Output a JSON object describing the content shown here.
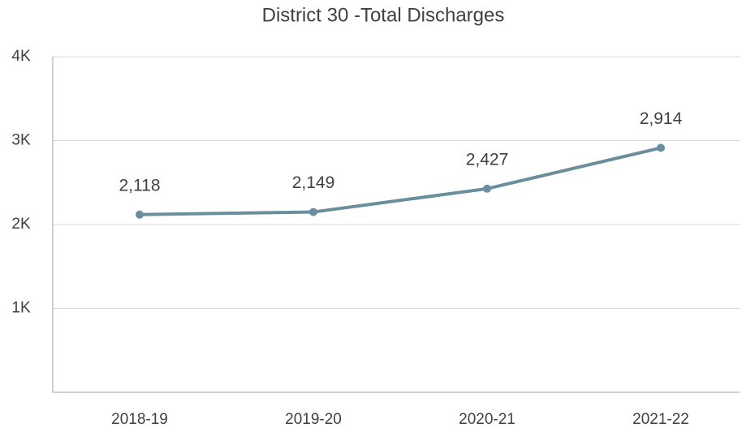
{
  "chart_data": {
    "type": "line",
    "title": "District 30 -Total Discharges",
    "categories": [
      "2018-19",
      "2019-20",
      "2020-21",
      "2021-22"
    ],
    "series": [
      {
        "name": "Total Discharges",
        "color": "#6a8f9c",
        "values": [
          2118,
          2149,
          2427,
          2914
        ],
        "value_labels": [
          "2,118",
          "2,149",
          "2,427",
          "2,914"
        ]
      }
    ],
    "ylim": [
      0,
      4000
    ],
    "yticks": [
      {
        "value": 1000,
        "label": "1K"
      },
      {
        "value": 2000,
        "label": "2K"
      },
      {
        "value": 3000,
        "label": "3K"
      },
      {
        "value": 4000,
        "label": "4K"
      }
    ],
    "grid": true
  }
}
